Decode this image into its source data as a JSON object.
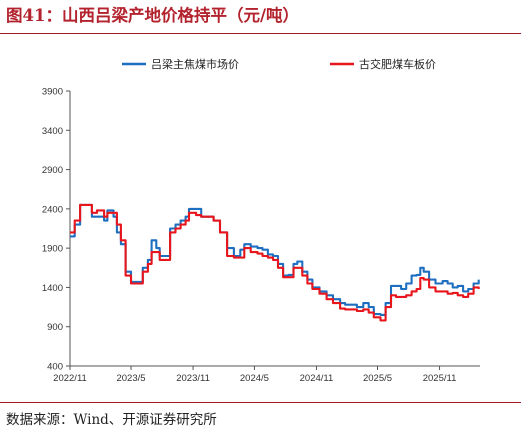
{
  "figure": {
    "title": "图41：山西吕梁产地价格持平（元/吨）",
    "source": "数据来源：Wind、开源证券研究所"
  },
  "colors": {
    "brand": "#a31a25",
    "title": "#b3232e"
  },
  "chart_data": {
    "type": "line",
    "title": "",
    "xlabel": "",
    "ylabel": "",
    "ylim": [
      400,
      3900
    ],
    "yticks": [
      400,
      900,
      1400,
      1900,
      2400,
      2900,
      3400,
      3900
    ],
    "xticks": [
      "2022/11",
      "2023/5",
      "2023/11",
      "2024/5",
      "2024/11",
      "2025/5",
      "2025/11"
    ],
    "xlim": [
      "2022-11-01",
      "2026-03-01"
    ],
    "grid": false,
    "legend_position": "top",
    "series": [
      {
        "name": "吕梁主焦煤市场价",
        "color": "#1f6fc0",
        "points": [
          [
            "2022-11-01",
            2050
          ],
          [
            "2022-11-15",
            2200
          ],
          [
            "2022-12-01",
            2450
          ],
          [
            "2022-12-20",
            2450
          ],
          [
            "2023-01-05",
            2300
          ],
          [
            "2023-01-20",
            2300
          ],
          [
            "2023-02-10",
            2250
          ],
          [
            "2023-02-20",
            2380
          ],
          [
            "2023-03-10",
            2300
          ],
          [
            "2023-03-20",
            2100
          ],
          [
            "2023-04-01",
            1950
          ],
          [
            "2023-04-15",
            1600
          ],
          [
            "2023-05-01",
            1470
          ],
          [
            "2023-05-20",
            1470
          ],
          [
            "2023-06-05",
            1650
          ],
          [
            "2023-06-20",
            1750
          ],
          [
            "2023-07-01",
            2000
          ],
          [
            "2023-07-15",
            1900
          ],
          [
            "2023-07-25",
            1800
          ],
          [
            "2023-08-10",
            1800
          ],
          [
            "2023-08-25",
            2150
          ],
          [
            "2023-09-10",
            2200
          ],
          [
            "2023-09-25",
            2250
          ],
          [
            "2023-10-10",
            2300
          ],
          [
            "2023-10-20",
            2400
          ],
          [
            "2023-11-10",
            2400
          ],
          [
            "2023-11-25",
            2300
          ],
          [
            "2023-12-15",
            2300
          ],
          [
            "2024-01-01",
            2250
          ],
          [
            "2024-01-20",
            2100
          ],
          [
            "2024-02-10",
            1900
          ],
          [
            "2024-03-01",
            1800
          ],
          [
            "2024-03-20",
            1880
          ],
          [
            "2024-04-01",
            1950
          ],
          [
            "2024-04-20",
            1920
          ],
          [
            "2024-05-10",
            1900
          ],
          [
            "2024-05-25",
            1880
          ],
          [
            "2024-06-10",
            1820
          ],
          [
            "2024-06-25",
            1800
          ],
          [
            "2024-07-10",
            1700
          ],
          [
            "2024-07-25",
            1550
          ],
          [
            "2024-08-10",
            1560
          ],
          [
            "2024-08-25",
            1700
          ],
          [
            "2024-09-05",
            1730
          ],
          [
            "2024-09-20",
            1600
          ],
          [
            "2024-10-05",
            1500
          ],
          [
            "2024-10-20",
            1400
          ],
          [
            "2024-11-10",
            1350
          ],
          [
            "2024-12-01",
            1300
          ],
          [
            "2024-12-20",
            1250
          ],
          [
            "2025-01-10",
            1200
          ],
          [
            "2025-01-25",
            1180
          ],
          [
            "2025-02-15",
            1180
          ],
          [
            "2025-03-01",
            1150
          ],
          [
            "2025-03-20",
            1200
          ],
          [
            "2025-04-05",
            1150
          ],
          [
            "2025-04-20",
            1060
          ],
          [
            "2025-05-10",
            1050
          ],
          [
            "2025-05-25",
            1200
          ],
          [
            "2025-06-10",
            1420
          ],
          [
            "2025-06-25",
            1420
          ],
          [
            "2025-07-10",
            1380
          ],
          [
            "2025-07-25",
            1450
          ],
          [
            "2025-08-10",
            1550
          ],
          [
            "2025-08-25",
            1560
          ],
          [
            "2025-09-05",
            1650
          ],
          [
            "2025-09-15",
            1600
          ],
          [
            "2025-10-01",
            1500
          ],
          [
            "2025-10-20",
            1450
          ],
          [
            "2025-11-10",
            1480
          ],
          [
            "2025-11-25",
            1450
          ],
          [
            "2025-12-10",
            1400
          ],
          [
            "2025-12-25",
            1420
          ],
          [
            "2026-01-10",
            1350
          ],
          [
            "2026-01-25",
            1380
          ],
          [
            "2026-02-10",
            1450
          ],
          [
            "2026-02-25",
            1500
          ]
        ]
      },
      {
        "name": "古交肥煤车板价",
        "color": "#e8161c",
        "points": [
          [
            "2022-11-01",
            2100
          ],
          [
            "2022-11-15",
            2250
          ],
          [
            "2022-12-01",
            2450
          ],
          [
            "2022-12-20",
            2450
          ],
          [
            "2023-01-05",
            2350
          ],
          [
            "2023-01-20",
            2380
          ],
          [
            "2023-02-10",
            2300
          ],
          [
            "2023-02-20",
            2350
          ],
          [
            "2023-03-10",
            2350
          ],
          [
            "2023-03-20",
            2200
          ],
          [
            "2023-04-01",
            2000
          ],
          [
            "2023-04-15",
            1550
          ],
          [
            "2023-05-01",
            1450
          ],
          [
            "2023-05-20",
            1450
          ],
          [
            "2023-06-05",
            1600
          ],
          [
            "2023-06-20",
            1700
          ],
          [
            "2023-07-01",
            1850
          ],
          [
            "2023-07-15",
            1850
          ],
          [
            "2023-07-25",
            1750
          ],
          [
            "2023-08-10",
            1750
          ],
          [
            "2023-08-25",
            2100
          ],
          [
            "2023-09-10",
            2150
          ],
          [
            "2023-09-25",
            2200
          ],
          [
            "2023-10-10",
            2250
          ],
          [
            "2023-10-20",
            2350
          ],
          [
            "2023-11-10",
            2320
          ],
          [
            "2023-11-25",
            2300
          ],
          [
            "2023-12-15",
            2300
          ],
          [
            "2024-01-01",
            2250
          ],
          [
            "2024-01-20",
            2100
          ],
          [
            "2024-02-10",
            1800
          ],
          [
            "2024-03-01",
            1780
          ],
          [
            "2024-03-20",
            1780
          ],
          [
            "2024-04-01",
            1900
          ],
          [
            "2024-04-20",
            1850
          ],
          [
            "2024-05-10",
            1830
          ],
          [
            "2024-05-25",
            1800
          ],
          [
            "2024-06-10",
            1780
          ],
          [
            "2024-06-25",
            1750
          ],
          [
            "2024-07-10",
            1650
          ],
          [
            "2024-07-25",
            1530
          ],
          [
            "2024-08-10",
            1530
          ],
          [
            "2024-08-25",
            1650
          ],
          [
            "2024-09-05",
            1650
          ],
          [
            "2024-09-20",
            1550
          ],
          [
            "2024-10-05",
            1450
          ],
          [
            "2024-10-20",
            1380
          ],
          [
            "2024-11-10",
            1320
          ],
          [
            "2024-12-01",
            1250
          ],
          [
            "2024-12-20",
            1200
          ],
          [
            "2025-01-10",
            1130
          ],
          [
            "2025-01-25",
            1120
          ],
          [
            "2025-02-15",
            1120
          ],
          [
            "2025-03-01",
            1100
          ],
          [
            "2025-03-20",
            1120
          ],
          [
            "2025-04-05",
            1080
          ],
          [
            "2025-04-20",
            1020
          ],
          [
            "2025-05-10",
            980
          ],
          [
            "2025-05-25",
            1150
          ],
          [
            "2025-06-10",
            1300
          ],
          [
            "2025-06-25",
            1280
          ],
          [
            "2025-07-10",
            1280
          ],
          [
            "2025-07-25",
            1300
          ],
          [
            "2025-08-10",
            1350
          ],
          [
            "2025-08-25",
            1380
          ],
          [
            "2025-09-05",
            1520
          ],
          [
            "2025-09-15",
            1500
          ],
          [
            "2025-10-01",
            1400
          ],
          [
            "2025-10-20",
            1350
          ],
          [
            "2025-11-10",
            1350
          ],
          [
            "2025-11-25",
            1320
          ],
          [
            "2025-12-10",
            1330
          ],
          [
            "2025-12-25",
            1300
          ],
          [
            "2026-01-10",
            1280
          ],
          [
            "2026-01-25",
            1320
          ],
          [
            "2026-02-10",
            1400
          ],
          [
            "2026-02-25",
            1380
          ]
        ]
      }
    ]
  }
}
